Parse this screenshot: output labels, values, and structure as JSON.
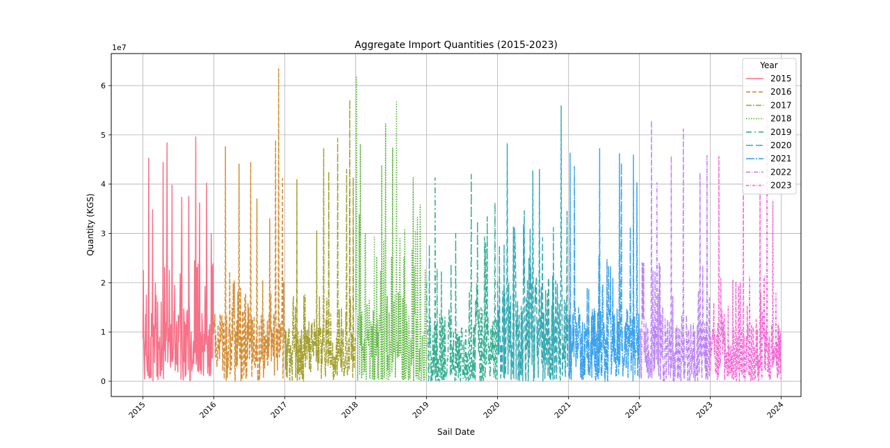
{
  "chart_data": {
    "type": "line",
    "title": "Aggregate Import Quantities (2015-2023)",
    "xlabel": "Sail Date",
    "ylabel": "Quantity (KGS)",
    "y_offset_label": "1e7",
    "xlim": [
      "2014-07-22",
      "2024-04-12"
    ],
    "ylim": [
      -3100000,
      66500000
    ],
    "x_ticks": [
      "2015",
      "2016",
      "2017",
      "2018",
      "2019",
      "2020",
      "2021",
      "2022",
      "2023",
      "2024"
    ],
    "y_ticks": [
      {
        "value": 0,
        "label": "0"
      },
      {
        "value": 10000000,
        "label": "1"
      },
      {
        "value": 20000000,
        "label": "2"
      },
      {
        "value": 30000000,
        "label": "3"
      },
      {
        "value": 40000000,
        "label": "4"
      },
      {
        "value": 50000000,
        "label": "5"
      },
      {
        "value": 60000000,
        "label": "6"
      }
    ],
    "grid": true,
    "legend": {
      "title": "Year",
      "placement": "top-right"
    },
    "series": [
      {
        "name": "2015",
        "color": "#f77189",
        "dash": "solid",
        "base": 7000000,
        "spread": 7000000,
        "peaks": [
          [
            "2015-01-04",
            22500000
          ],
          [
            "2015-02-01",
            45300000
          ],
          [
            "2015-02-20",
            34800000
          ],
          [
            "2015-04-15",
            44400000
          ],
          [
            "2015-05-05",
            48400000
          ],
          [
            "2015-06-01",
            39800000
          ],
          [
            "2015-07-20",
            37300000
          ],
          [
            "2015-08-25",
            37500000
          ],
          [
            "2015-10-01",
            49600000
          ],
          [
            "2015-10-20",
            36200000
          ],
          [
            "2015-11-25",
            40200000
          ],
          [
            "2015-12-20",
            30000000
          ]
        ]
      },
      {
        "name": "2016",
        "color": "#d58c32",
        "dash": "6,3",
        "base": 8000000,
        "spread": 6000000,
        "peaks": [
          [
            "2016-03-01",
            47600000
          ],
          [
            "2016-05-10",
            44100000
          ],
          [
            "2016-07-10",
            44500000
          ],
          [
            "2016-08-10",
            37000000
          ],
          [
            "2016-10-15",
            33000000
          ],
          [
            "2016-11-15",
            48900000
          ],
          [
            "2016-12-01",
            63400000
          ],
          [
            "2016-12-20",
            41100000
          ]
        ]
      },
      {
        "name": "2017",
        "color": "#a4a031",
        "dash": "8,2,2,2",
        "base": 6000000,
        "spread": 5000000,
        "peaks": [
          [
            "2017-03-05",
            41000000
          ],
          [
            "2017-06-15",
            30500000
          ],
          [
            "2017-07-20",
            47300000
          ],
          [
            "2017-08-15",
            42500000
          ],
          [
            "2017-10-01",
            49300000
          ],
          [
            "2017-11-15",
            43000000
          ],
          [
            "2017-12-01",
            57100000
          ],
          [
            "2017-12-20",
            41400000
          ]
        ]
      },
      {
        "name": "2018",
        "color": "#50b131",
        "dash": "1.5,2",
        "base": 8000000,
        "spread": 10000000,
        "peaks": [
          [
            "2018-01-05",
            61900000
          ],
          [
            "2018-01-25",
            48000000
          ],
          [
            "2018-05-15",
            43800000
          ],
          [
            "2018-06-05",
            52200000
          ],
          [
            "2018-07-10",
            47300000
          ],
          [
            "2018-07-30",
            56700000
          ],
          [
            "2018-08-15",
            22000000
          ],
          [
            "2018-10-25",
            41300000
          ],
          [
            "2018-11-30",
            35800000
          ]
        ]
      },
      {
        "name": "2019",
        "color": "#34ae91",
        "dash": "8,4,2,4",
        "base": 6000000,
        "spread": 9000000,
        "peaks": [
          [
            "2019-02-15",
            41300000
          ],
          [
            "2019-06-01",
            30000000
          ],
          [
            "2019-08-20",
            42000000
          ],
          [
            "2019-09-20",
            32500000
          ],
          [
            "2019-11-10",
            33500000
          ],
          [
            "2019-12-20",
            36300000
          ]
        ]
      },
      {
        "name": "2020",
        "color": "#37abb4",
        "dash": "10,4",
        "base": 10000000,
        "spread": 11000000,
        "peaks": [
          [
            "2020-02-20",
            48200000
          ],
          [
            "2020-03-30",
            31100000
          ],
          [
            "2020-07-01",
            42700000
          ],
          [
            "2020-08-05",
            43000000
          ],
          [
            "2020-10-15",
            31200000
          ],
          [
            "2020-11-25",
            55900000
          ],
          [
            "2020-12-25",
            34500000
          ]
        ]
      },
      {
        "name": "2021",
        "color": "#3ba3ec",
        "dash": "12,2,2,2",
        "base": 8000000,
        "spread": 7000000,
        "peaks": [
          [
            "2021-01-10",
            46300000
          ],
          [
            "2021-02-01",
            43600000
          ],
          [
            "2021-06-10",
            47200000
          ],
          [
            "2021-09-20",
            46200000
          ],
          [
            "2021-10-01",
            44300000
          ],
          [
            "2021-11-15",
            31300000
          ],
          [
            "2021-12-01",
            45900000
          ],
          [
            "2021-12-20",
            40300000
          ]
        ]
      },
      {
        "name": "2022",
        "color": "#bb83f4",
        "dash": "6,2,1,2",
        "base": 6000000,
        "spread": 7000000,
        "peaks": [
          [
            "2022-03-05",
            52900000
          ],
          [
            "2022-04-01",
            40300000
          ],
          [
            "2022-06-15",
            45700000
          ],
          [
            "2022-08-15",
            51200000
          ],
          [
            "2022-11-10",
            42300000
          ],
          [
            "2022-12-15",
            45800000
          ]
        ]
      },
      {
        "name": "2023",
        "color": "#f564d4",
        "dash": "4,2,1,2",
        "base": 6000000,
        "spread": 6000000,
        "peaks": [
          [
            "2023-02-15",
            45600000
          ],
          [
            "2023-06-20",
            48700000
          ],
          [
            "2023-09-15",
            40500000
          ],
          [
            "2023-10-20",
            53000000
          ],
          [
            "2023-11-20",
            36600000
          ]
        ]
      }
    ]
  }
}
